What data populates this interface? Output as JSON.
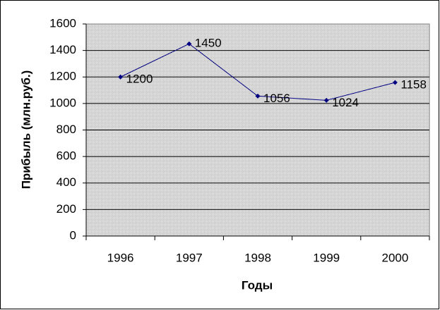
{
  "chart_data": {
    "type": "line",
    "y_label": "Прибыль (млн.руб.)",
    "x_label": "Годы",
    "categories": [
      "1996",
      "1997",
      "1998",
      "1999",
      "2000"
    ],
    "values": [
      1200,
      1450,
      1056,
      1024,
      1158
    ],
    "color": "#000080",
    "ylim": [
      0,
      1600
    ],
    "yticks": [
      0,
      200,
      400,
      600,
      800,
      1000,
      1200,
      1400,
      1600
    ],
    "grid": true
  }
}
